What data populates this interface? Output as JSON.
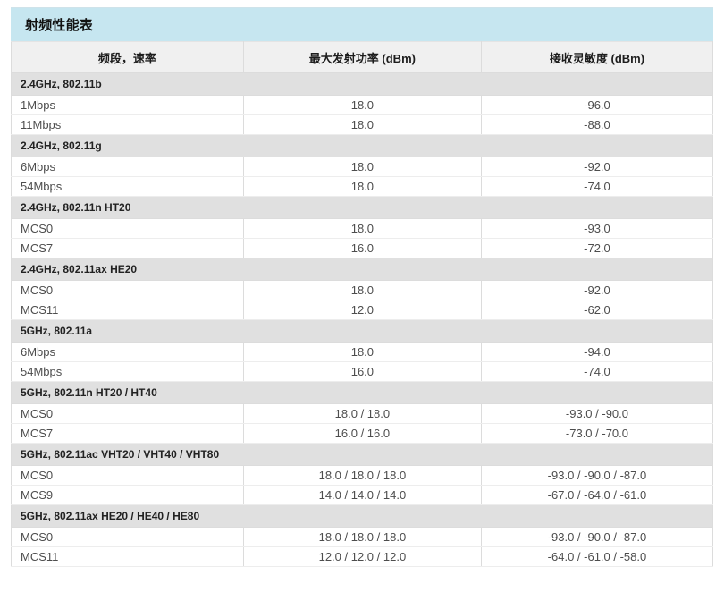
{
  "title": "射频性能表",
  "colors": {
    "title_bg": "#c6e6f0",
    "header_bg": "#f0f0f0",
    "section_bg": "#e0e0e0",
    "border": "#dcdcdc"
  },
  "table": {
    "columns": [
      "频段，速率",
      "最大发射功率 (dBm)",
      "接收灵敏度 (dBm)"
    ],
    "sections": [
      {
        "label": "2.4GHz, 802.11b",
        "rows": [
          [
            "1Mbps",
            "18.0",
            "-96.0"
          ],
          [
            "11Mbps",
            "18.0",
            "-88.0"
          ]
        ]
      },
      {
        "label": "2.4GHz, 802.11g",
        "rows": [
          [
            "6Mbps",
            "18.0",
            "-92.0"
          ],
          [
            "54Mbps",
            "18.0",
            "-74.0"
          ]
        ]
      },
      {
        "label": "2.4GHz, 802.11n HT20",
        "rows": [
          [
            "MCS0",
            "18.0",
            "-93.0"
          ],
          [
            "MCS7",
            "16.0",
            "-72.0"
          ]
        ]
      },
      {
        "label": "2.4GHz, 802.11ax HE20",
        "rows": [
          [
            "MCS0",
            "18.0",
            "-92.0"
          ],
          [
            "MCS11",
            "12.0",
            "-62.0"
          ]
        ]
      },
      {
        "label": "5GHz, 802.11a",
        "rows": [
          [
            "6Mbps",
            "18.0",
            "-94.0"
          ],
          [
            "54Mbps",
            "16.0",
            "-74.0"
          ]
        ]
      },
      {
        "label": "5GHz, 802.11n HT20 / HT40",
        "rows": [
          [
            "MCS0",
            "18.0 / 18.0",
            "-93.0 / -90.0"
          ],
          [
            "MCS7",
            "16.0 / 16.0",
            "-73.0 / -70.0"
          ]
        ]
      },
      {
        "label": "5GHz, 802.11ac VHT20 / VHT40 / VHT80",
        "rows": [
          [
            "MCS0",
            "18.0 / 18.0 / 18.0",
            "-93.0 / -90.0 / -87.0"
          ],
          [
            "MCS9",
            "14.0 / 14.0 / 14.0",
            "-67.0 / -64.0 / -61.0"
          ]
        ]
      },
      {
        "label": "5GHz, 802.11ax HE20 / HE40 / HE80",
        "rows": [
          [
            "MCS0",
            "18.0 / 18.0 / 18.0",
            "-93.0 / -90.0 / -87.0"
          ],
          [
            "MCS11",
            "12.0 / 12.0 / 12.0",
            "-64.0 / -61.0 / -58.0"
          ]
        ]
      }
    ]
  }
}
